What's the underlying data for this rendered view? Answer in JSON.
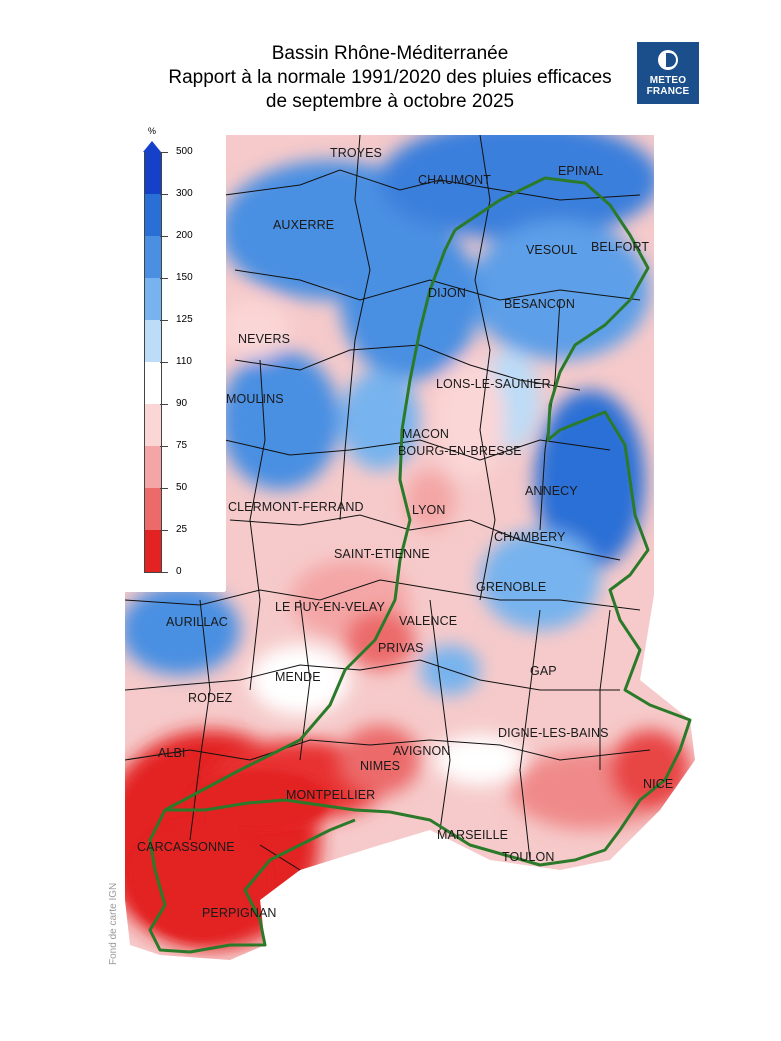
{
  "title": {
    "line1": "Bassin Rhône-Méditerranée",
    "line2": "Rapport à la normale 1991/2020 des pluies efficaces",
    "line3": "de septembre à octobre 2025"
  },
  "logo": {
    "line1": "METEO",
    "line2": "FRANCE",
    "icon": "meteo-france-logo-icon"
  },
  "legend": {
    "unit": "%",
    "ticks": [
      "500",
      "300",
      "200",
      "150",
      "125",
      "110",
      "90",
      "75",
      "50",
      "25",
      "0"
    ],
    "classes": [
      {
        "range": "300-500",
        "color": "#1540c8"
      },
      {
        "range": "200-300",
        "color": "#2a6fd6"
      },
      {
        "range": "150-200",
        "color": "#4a8fe2"
      },
      {
        "range": "125-150",
        "color": "#77b3ee"
      },
      {
        "range": "110-125",
        "color": "#bcdcf7"
      },
      {
        "range": "90-110",
        "color": "#ffffff"
      },
      {
        "range": "75-90",
        "color": "#fbd6d6"
      },
      {
        "range": "50-75",
        "color": "#f4a6a6"
      },
      {
        "range": "25-50",
        "color": "#ec6a6a"
      },
      {
        "range": "0-25",
        "color": "#e32222"
      }
    ]
  },
  "basin_outline_color": "#2a7a2a",
  "cities": [
    "TROYES",
    "CHAUMONT",
    "EPINAL",
    "AUXERRE",
    "VESOUL",
    "BELFORT",
    "DIJON",
    "BESANCON",
    "NEVERS",
    "LONS-LE-SAUNIER",
    "MOULINS",
    "MACON",
    "BOURG-EN-BRESSE",
    "ANNECY",
    "CLERMONT-FERRAND",
    "LYON",
    "CHAMBERY",
    "SAINT-ETIENNE",
    "GRENOBLE",
    "LE PUY-EN-VELAY",
    "VALENCE",
    "AURILLAC",
    "PRIVAS",
    "GAP",
    "MENDE",
    "RODEZ",
    "DIGNE-LES-BAINS",
    "ALBI",
    "AVIGNON",
    "NIMES",
    "NICE",
    "MONTPELLIER",
    "MARSEILLE",
    "CARCASSONNE",
    "TOULON",
    "PERPIGNAN"
  ],
  "credit": "Fond de carte IGN"
}
